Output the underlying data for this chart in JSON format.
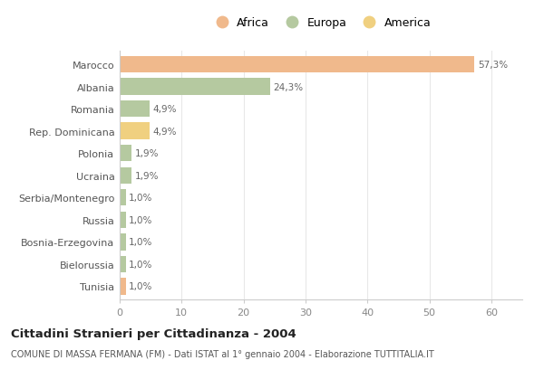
{
  "categories": [
    "Marocco",
    "Albania",
    "Romania",
    "Rep. Dominicana",
    "Polonia",
    "Ucraina",
    "Serbia/Montenegro",
    "Russia",
    "Bosnia-Erzegovina",
    "Bielorussia",
    "Tunisia"
  ],
  "values": [
    57.3,
    24.3,
    4.9,
    4.9,
    1.9,
    1.9,
    1.0,
    1.0,
    1.0,
    1.0,
    1.0
  ],
  "labels": [
    "57,3%",
    "24,3%",
    "4,9%",
    "4,9%",
    "1,9%",
    "1,9%",
    "1,0%",
    "1,0%",
    "1,0%",
    "1,0%",
    "1,0%"
  ],
  "colors": [
    "#F0B98C",
    "#B5C9A0",
    "#B5C9A0",
    "#F0D080",
    "#B5C9A0",
    "#B5C9A0",
    "#B5C9A0",
    "#B5C9A0",
    "#B5C9A0",
    "#B5C9A0",
    "#F0B98C"
  ],
  "continent_colors": {
    "Africa": "#F0B98C",
    "Europa": "#B5C9A0",
    "America": "#F0D080"
  },
  "legend_labels": [
    "Africa",
    "Europa",
    "America"
  ],
  "title": "Cittadini Stranieri per Cittadinanza - 2004",
  "subtitle": "COMUNE DI MASSA FERMANA (FM) - Dati ISTAT al 1° gennaio 2004 - Elaborazione TUTTITALIA.IT",
  "xlim": [
    0,
    65
  ],
  "xticks": [
    0,
    10,
    20,
    30,
    40,
    50,
    60
  ],
  "bg_color": "#ffffff",
  "grid_color": "#e8e8e8",
  "bar_height": 0.75
}
